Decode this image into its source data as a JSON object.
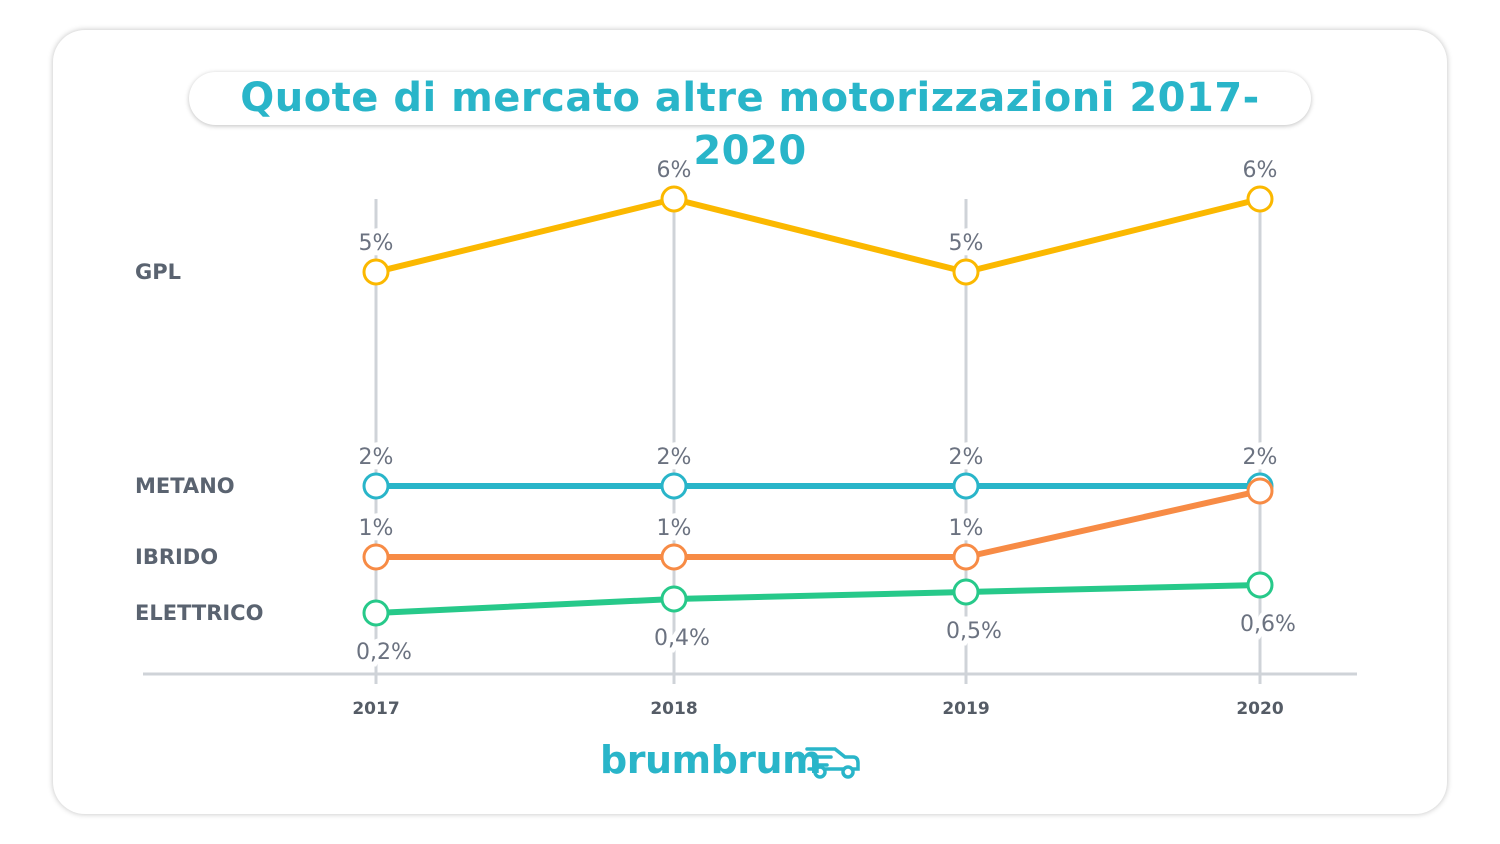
{
  "title": "Quote di mercato altre motorizzazioni 2017-2020",
  "logo": "brumbrum",
  "chart_data": {
    "type": "line",
    "title": "Quote di mercato altre motorizzazioni 2017-2020",
    "xlabel": "",
    "ylabel": "",
    "categories": [
      "2017",
      "2018",
      "2019",
      "2020"
    ],
    "unit": "%",
    "grid": "vertical",
    "legend": "left (series names)",
    "series": [
      {
        "name": "GPL",
        "color": "#fbb800",
        "values": [
          5,
          6,
          5,
          6
        ],
        "labels": [
          "5%",
          "6%",
          "5%",
          "6%"
        ],
        "label_pos": "above"
      },
      {
        "name": "METANO",
        "color": "#29b5c9",
        "values": [
          2,
          2,
          2,
          2
        ],
        "labels": [
          "2%",
          "2%",
          "2%",
          "2%"
        ],
        "label_pos": "above"
      },
      {
        "name": "IBRIDO",
        "color": "#f78b45",
        "values": [
          1,
          1,
          1,
          1.93
        ],
        "labels": [
          "1%",
          "1%",
          "1%",
          null
        ],
        "label_pos": "above"
      },
      {
        "name": "ELETTRICO",
        "color": "#27c98a",
        "values": [
          0.2,
          0.4,
          0.5,
          0.6
        ],
        "labels": [
          "0,2%",
          "0,4%",
          "0,5%",
          "0,6%"
        ],
        "label_pos": "below"
      }
    ]
  }
}
